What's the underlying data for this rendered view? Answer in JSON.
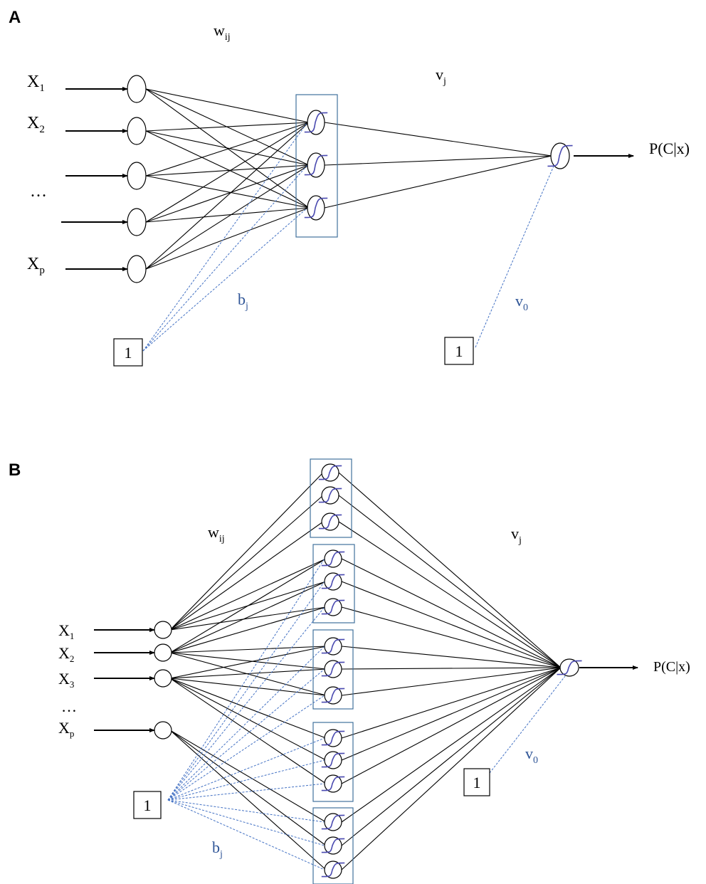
{
  "panelA": {
    "label": "A",
    "weights_in": {
      "main": "w",
      "sub": "ij"
    },
    "weights_out": {
      "main": "v",
      "sub": "j"
    },
    "bias_hidden": {
      "main": "b",
      "sub": "j"
    },
    "bias_out": {
      "main": "v",
      "sub": "0"
    },
    "inputs": [
      {
        "main": "X",
        "sub": "1"
      },
      {
        "main": "X",
        "sub": "2"
      },
      {
        "main": "…",
        "sub": ""
      },
      {
        "main": "",
        "sub": ""
      },
      {
        "main": "X",
        "sub": "p"
      }
    ],
    "bias_node_hidden": "1",
    "bias_node_out": "1",
    "output": "P(C|x)"
  },
  "panelB": {
    "label": "B",
    "weights_in": {
      "main": "w",
      "sub": "ij"
    },
    "weights_out": {
      "main": "v",
      "sub": "j"
    },
    "bias_hidden": {
      "main": "b",
      "sub": "j"
    },
    "bias_out": {
      "main": "v",
      "sub": "0"
    },
    "inputs": [
      {
        "main": "X",
        "sub": "1"
      },
      {
        "main": "X",
        "sub": "2"
      },
      {
        "main": "X",
        "sub": "3"
      },
      {
        "main": "…",
        "sub": ""
      },
      {
        "main": "X",
        "sub": "p"
      }
    ],
    "bias_node_hidden": "1",
    "bias_node_out": "1",
    "output": "P(C|x)"
  },
  "colors": {
    "line": "#000000",
    "bias": "#4472c4",
    "box": "#41719c",
    "biasText": "#2f5597"
  }
}
